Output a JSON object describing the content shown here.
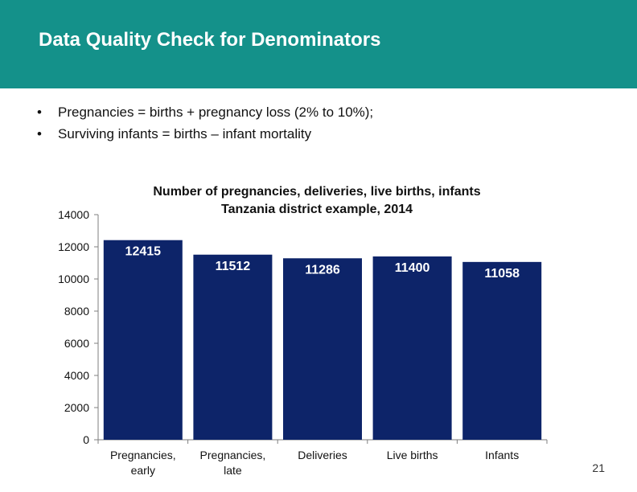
{
  "header": {
    "title": "Data Quality Check for Denominators"
  },
  "bullets": [
    "Pregnancies = births + pregnancy loss (2% to 10%);",
    "Surviving infants = births – infant mortality"
  ],
  "chart_data": {
    "type": "bar",
    "title_lines": [
      "Number of pregnancies, deliveries, live births, infants",
      "Tanzania district example, 2014"
    ],
    "categories": [
      [
        "Pregnancies,",
        "early"
      ],
      [
        "Pregnancies,",
        "late"
      ],
      [
        "Deliveries"
      ],
      [
        "Live births"
      ],
      [
        "Infants"
      ]
    ],
    "values": [
      12415,
      11512,
      11286,
      11400,
      11058
    ],
    "data_labels": [
      "12415",
      "11512",
      "11286",
      "11400",
      "11058"
    ],
    "yticks": [
      0,
      2000,
      4000,
      6000,
      8000,
      10000,
      12000,
      14000
    ],
    "ylim": [
      0,
      14000
    ],
    "xlabel": "",
    "ylabel": "",
    "grid": false,
    "bar_color": "#0d2469"
  },
  "footer": {
    "page_number": "21"
  },
  "colors": {
    "header_bg": "#14918a",
    "bar": "#0d2469"
  }
}
